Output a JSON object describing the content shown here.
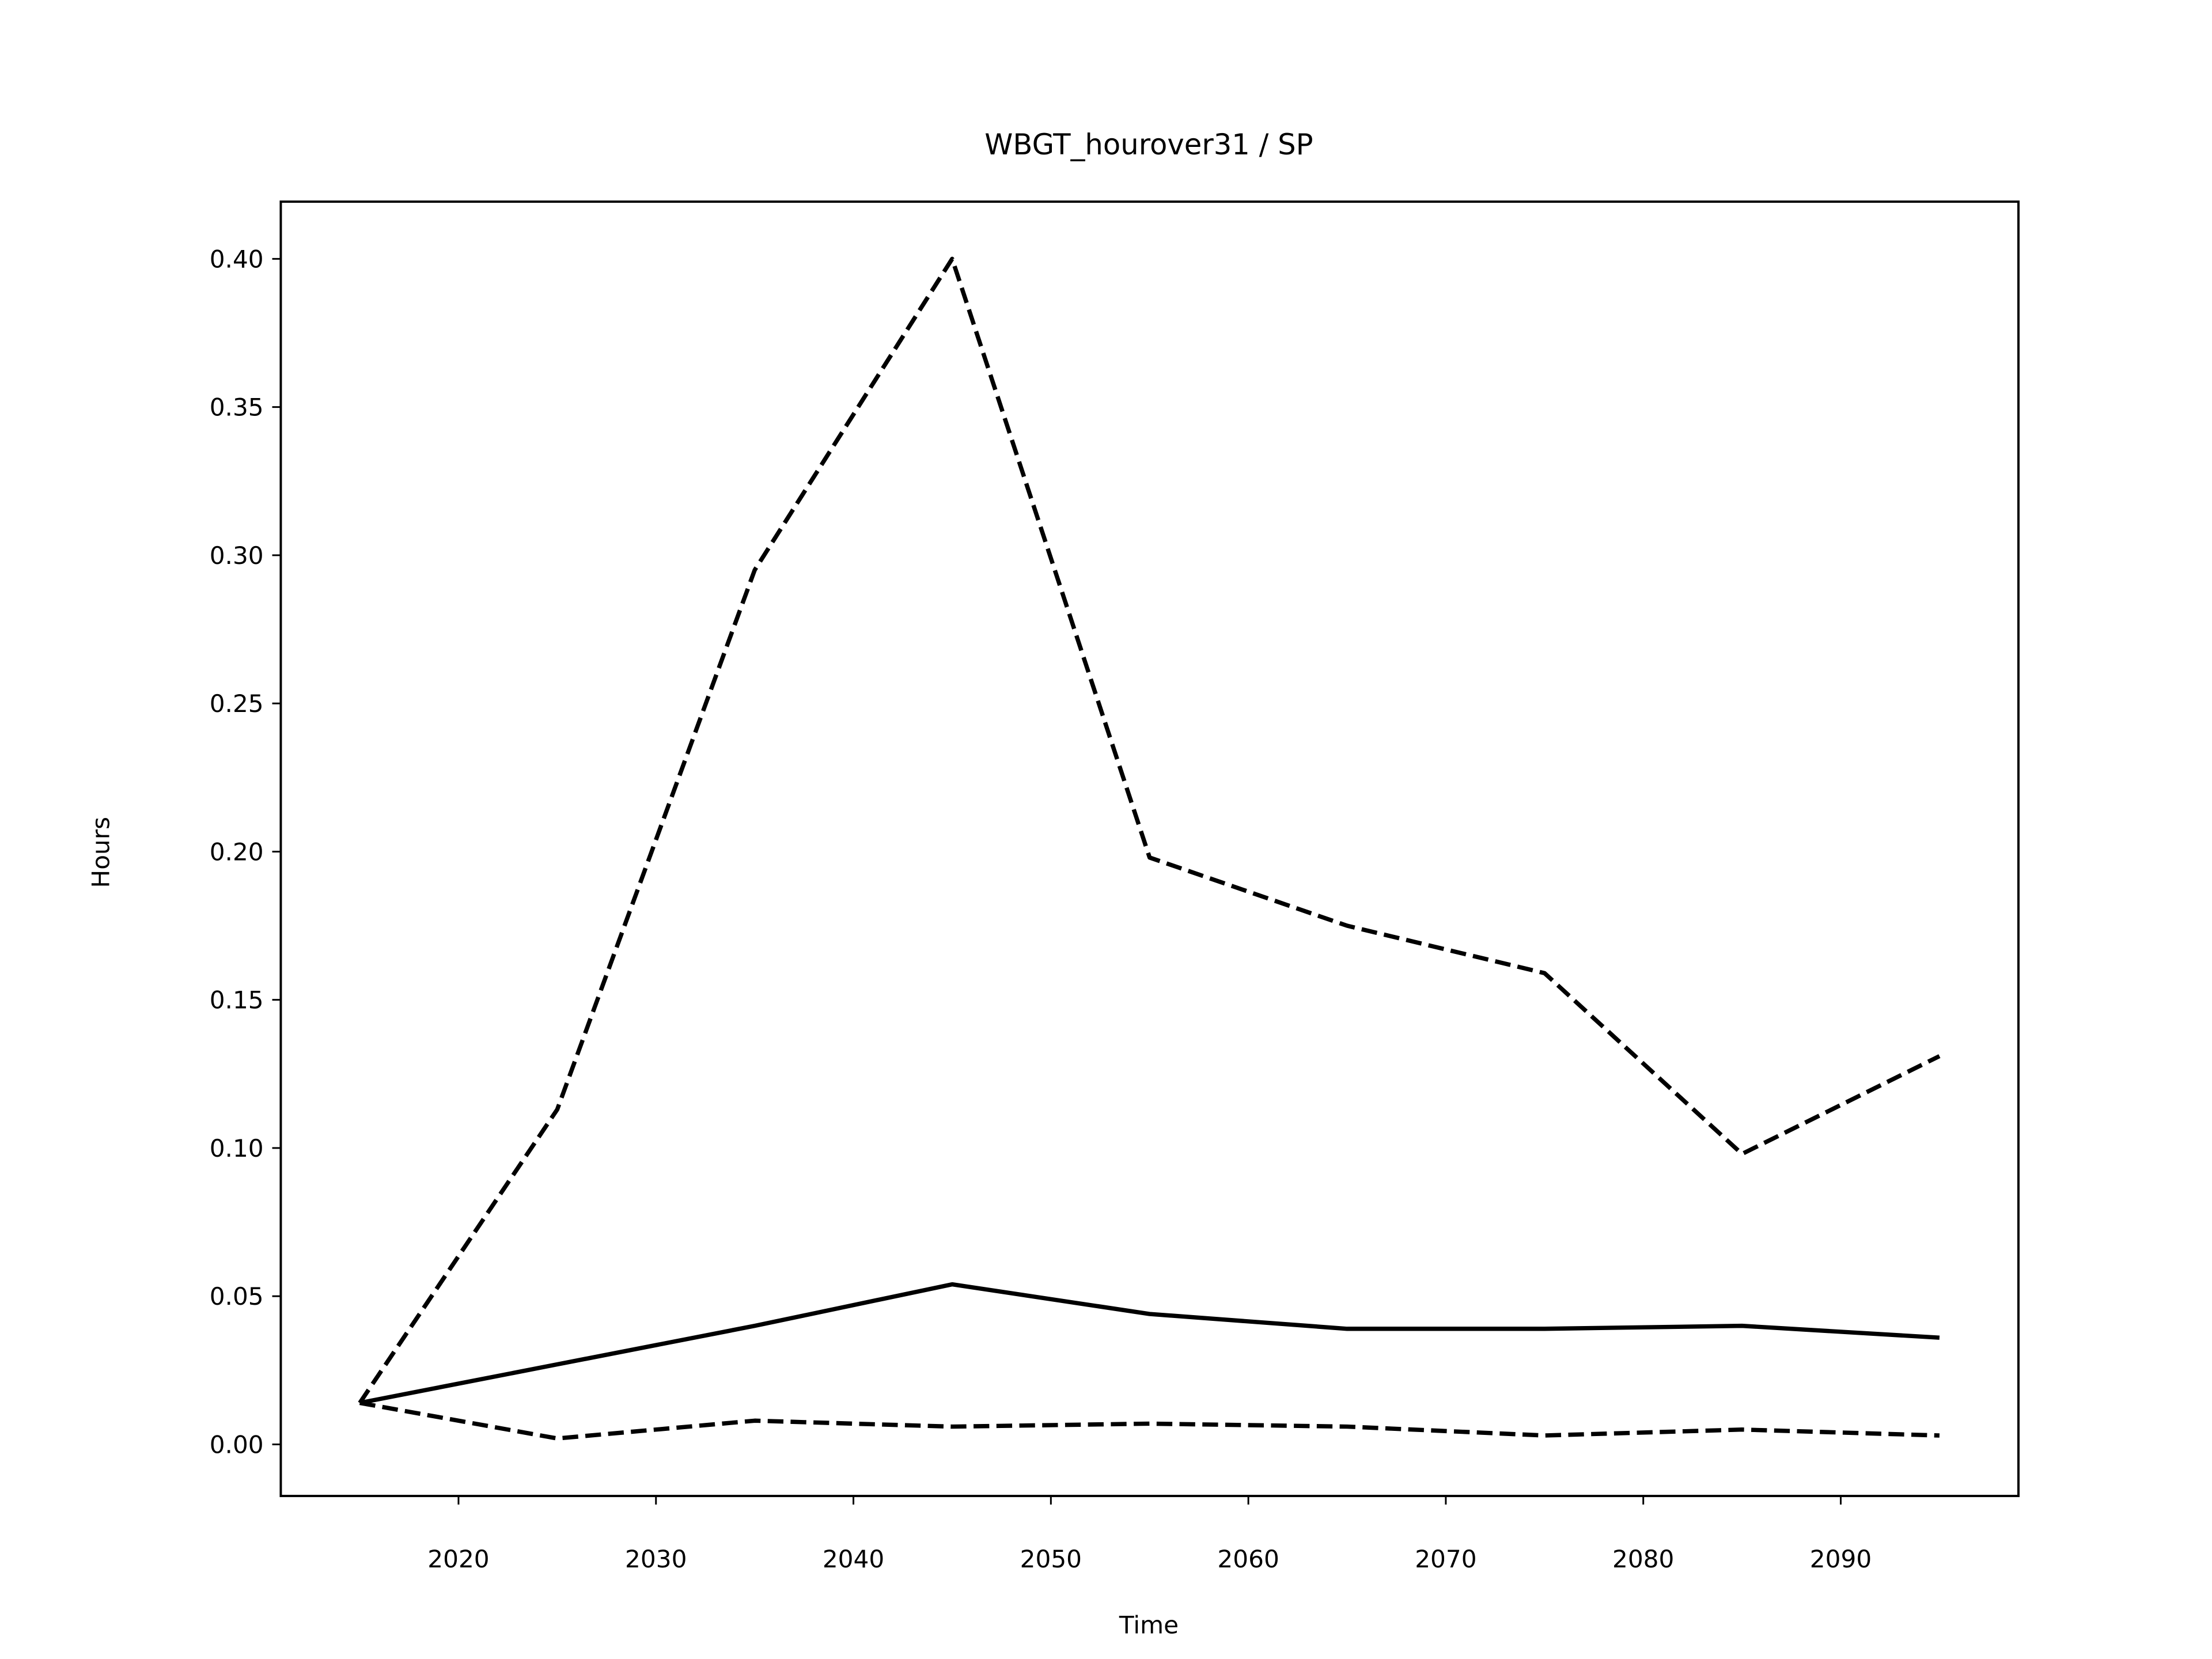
{
  "chart_data": {
    "type": "line",
    "title": "WBGT_hourover31 / SP",
    "xlabel": "Time",
    "ylabel": "Hours",
    "x": [
      2015,
      2025,
      2035,
      2045,
      2055,
      2065,
      2075,
      2085,
      2095
    ],
    "series": [
      {
        "color": "#000000",
        "linestyle": "dashed",
        "values": [
          0.014,
          0.113,
          0.295,
          0.4,
          0.198,
          0.175,
          0.159,
          0.098,
          0.131
        ]
      },
      {
        "color": "#000000",
        "linestyle": "solid",
        "values": [
          0.014,
          0.027,
          0.04,
          0.054,
          0.044,
          0.039,
          0.039,
          0.04,
          0.036
        ]
      },
      {
        "color": "#000000",
        "linestyle": "dashed",
        "values": [
          0.014,
          0.002,
          0.008,
          0.006,
          0.007,
          0.006,
          0.003,
          0.005,
          0.003
        ]
      }
    ],
    "xlim": [
      2011,
      2099
    ],
    "ylim": [
      -0.0174,
      0.4193
    ],
    "xticks": [
      2020,
      2030,
      2040,
      2050,
      2060,
      2070,
      2080,
      2090
    ],
    "yticks": [
      {
        "value": 0,
        "label": "0.00"
      },
      {
        "value": 0.05,
        "label": "0.05"
      },
      {
        "value": 0.1,
        "label": "0.10"
      },
      {
        "value": 0.15,
        "label": "0.15"
      },
      {
        "value": 0.2,
        "label": "0.20"
      },
      {
        "value": 0.25,
        "label": "0.25"
      },
      {
        "value": 0.3,
        "label": "0.30"
      },
      {
        "value": 0.35,
        "label": "0.35"
      },
      {
        "value": 0.4,
        "label": "0.40"
      }
    ],
    "grid": false
  }
}
